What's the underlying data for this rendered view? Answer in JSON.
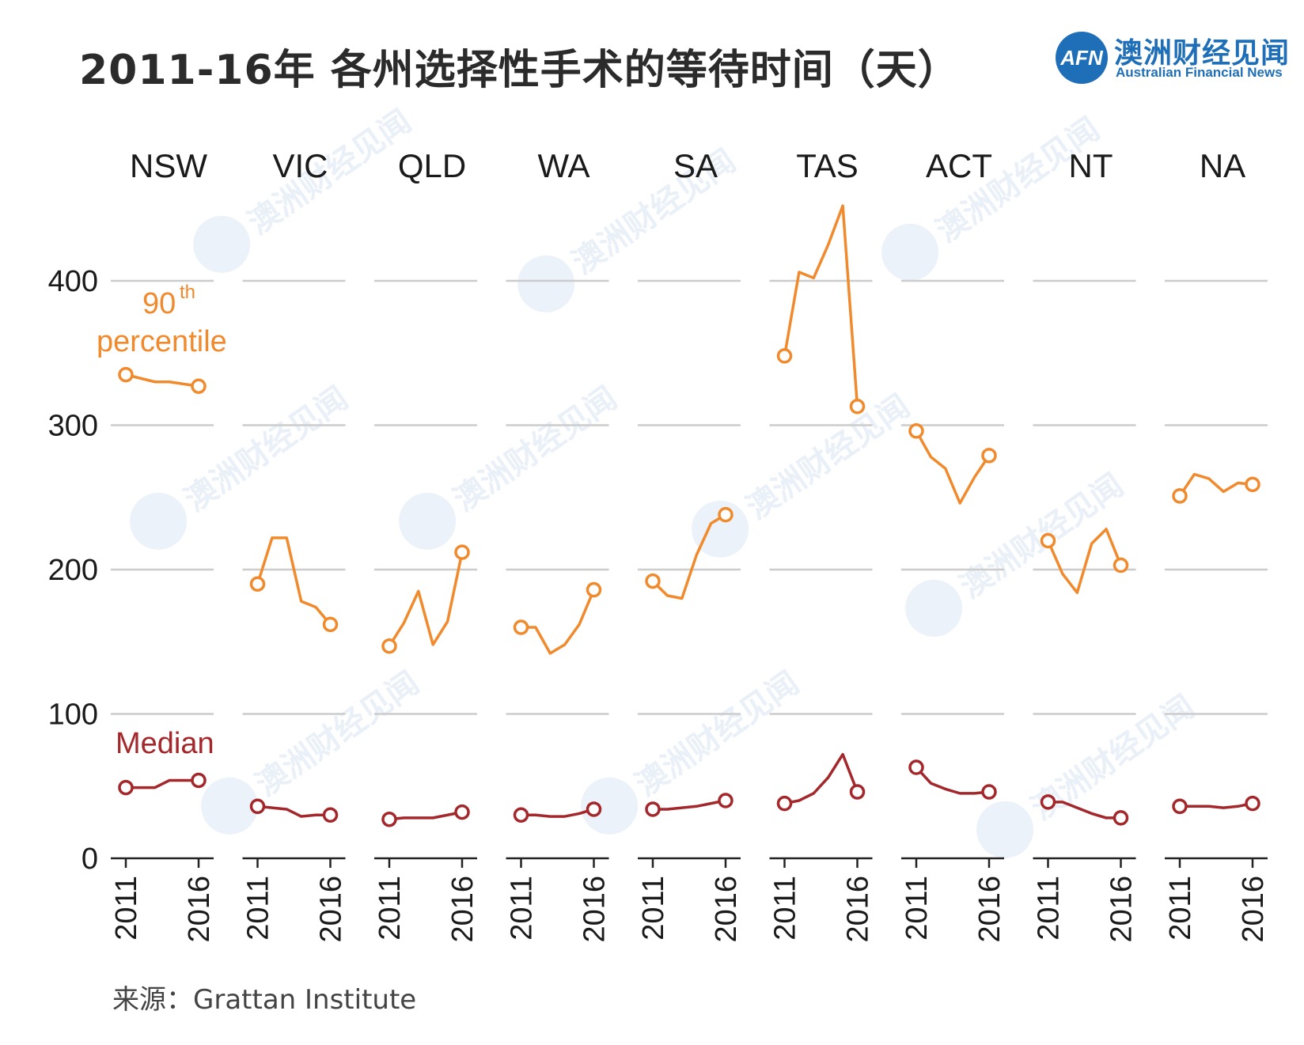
{
  "title": "2011-16年 各州选择性手术的等待时间（天）",
  "logo": {
    "mark": "AFN",
    "cn": "澳洲财经见闻",
    "en": "Australian Financial News"
  },
  "source": "来源：Grattan Institute",
  "colors": {
    "p90": "#f08a2c",
    "median": "#a3272b",
    "grid": "#cccccc",
    "axis": "#222222",
    "text": "#1a1a1a"
  },
  "chart_data": {
    "type": "line",
    "title": "2011-16年 各州选择性手术的等待时间（天）",
    "ylim": [
      0,
      400
    ],
    "yticks": [
      0,
      100,
      200,
      300,
      400
    ],
    "x": [
      2011,
      2012,
      2013,
      2014,
      2015,
      2016
    ],
    "xtick_labels": [
      "2011",
      "2016"
    ],
    "series_labels": {
      "p90_main": "90",
      "p90_sup": "th",
      "p90_sub": "percentile",
      "median": "Median"
    },
    "panels": [
      {
        "name": "NSW",
        "p90": [
          335,
          null,
          330,
          330,
          null,
          327
        ],
        "median": [
          49,
          49,
          49,
          54,
          54,
          54
        ]
      },
      {
        "name": "VIC",
        "p90": [
          190,
          222,
          222,
          178,
          174,
          162
        ],
        "median": [
          36,
          35,
          34,
          29,
          30,
          30
        ]
      },
      {
        "name": "QLD",
        "p90": [
          147,
          163,
          185,
          148,
          164,
          212
        ],
        "median": [
          27,
          28,
          28,
          28,
          30,
          32
        ]
      },
      {
        "name": "WA",
        "p90": [
          160,
          160,
          142,
          148,
          162,
          186
        ],
        "median": [
          30,
          30,
          29,
          29,
          31,
          34
        ]
      },
      {
        "name": "SA",
        "p90": [
          192,
          182,
          180,
          210,
          232,
          238
        ],
        "median": [
          34,
          34,
          35,
          36,
          38,
          40
        ]
      },
      {
        "name": "TAS",
        "p90": [
          348,
          406,
          402,
          425,
          452,
          313
        ],
        "median": [
          38,
          40,
          45,
          56,
          72,
          46
        ]
      },
      {
        "name": "ACT",
        "p90": [
          296,
          278,
          270,
          246,
          264,
          279
        ],
        "median": [
          63,
          52,
          48,
          45,
          45,
          46
        ]
      },
      {
        "name": "NT",
        "p90": [
          220,
          197,
          184,
          218,
          228,
          203
        ],
        "median": [
          39,
          39,
          35,
          31,
          28,
          28
        ]
      },
      {
        "name": "NA",
        "p90": [
          251,
          266,
          263,
          254,
          260,
          259
        ],
        "median": [
          36,
          36,
          36,
          35,
          36,
          38
        ]
      }
    ]
  }
}
